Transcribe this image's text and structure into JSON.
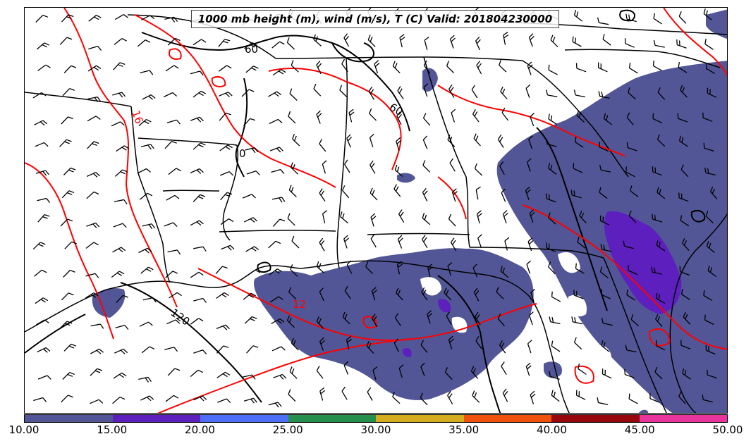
{
  "title": "1000 mb height (m), wind (m/s), T (C) Valid: 201804230000",
  "contour_labels": {
    "height_60_a": "60",
    "height_60_b": "60",
    "height_120": "120",
    "height_0": "0",
    "temp_16": "16",
    "temp_12": "12"
  },
  "colors": {
    "height_contour": "#000000",
    "temp_contour": "#ff0000",
    "map_lines": "#000000"
  },
  "colorbar": {
    "ticks": [
      "10.00",
      "15.00",
      "20.00",
      "25.00",
      "30.00",
      "35.00",
      "40.00",
      "45.00",
      "50.00"
    ],
    "colors": [
      "#525696",
      "#5d1fbe",
      "#4f6ef7",
      "#27904e",
      "#d4ae1e",
      "#f0520e",
      "#98070b",
      "#e8349c"
    ]
  }
}
